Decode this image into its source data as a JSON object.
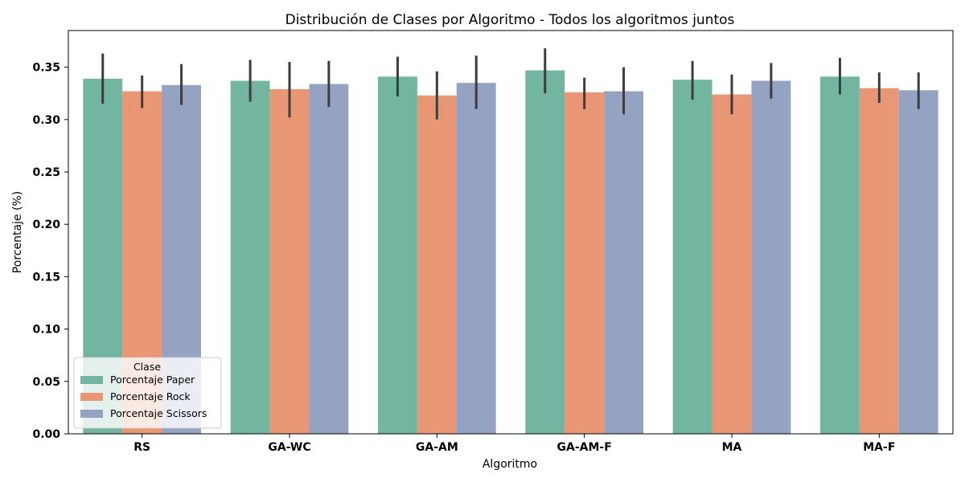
{
  "chart_data": {
    "type": "bar",
    "title": "Distribución de Clases por Algoritmo - Todos los algoritmos juntos",
    "xlabel": "Algoritmo",
    "ylabel": "Porcentaje (%)",
    "ylim": [
      0,
      0.385
    ],
    "yticks": [
      "0.00",
      "0.05",
      "0.10",
      "0.15",
      "0.20",
      "0.25",
      "0.30",
      "0.35"
    ],
    "categories": [
      "RS",
      "GA-WC",
      "GA-AM",
      "GA-AM-F",
      "MA",
      "MA-F"
    ],
    "legend": {
      "title": "Clase",
      "placement": "lower-left"
    },
    "grid": false,
    "series": [
      {
        "name": "Porcentaje Paper",
        "color": "#72b6a1",
        "values": [
          0.339,
          0.337,
          0.341,
          0.347,
          0.338,
          0.341
        ],
        "err_low": [
          0.315,
          0.317,
          0.322,
          0.325,
          0.319,
          0.324
        ],
        "err_high": [
          0.363,
          0.357,
          0.36,
          0.368,
          0.356,
          0.359
        ]
      },
      {
        "name": "Porcentaje Rock",
        "color": "#e99675",
        "values": [
          0.327,
          0.329,
          0.323,
          0.326,
          0.324,
          0.33
        ],
        "err_low": [
          0.311,
          0.302,
          0.3,
          0.31,
          0.305,
          0.316
        ],
        "err_high": [
          0.342,
          0.355,
          0.346,
          0.34,
          0.343,
          0.345
        ]
      },
      {
        "name": "Porcentaje Scissors",
        "color": "#95a3c3",
        "values": [
          0.333,
          0.334,
          0.335,
          0.327,
          0.337,
          0.328
        ],
        "err_low": [
          0.314,
          0.312,
          0.31,
          0.305,
          0.32,
          0.31
        ],
        "err_high": [
          0.353,
          0.356,
          0.361,
          0.35,
          0.354,
          0.345
        ]
      }
    ]
  }
}
